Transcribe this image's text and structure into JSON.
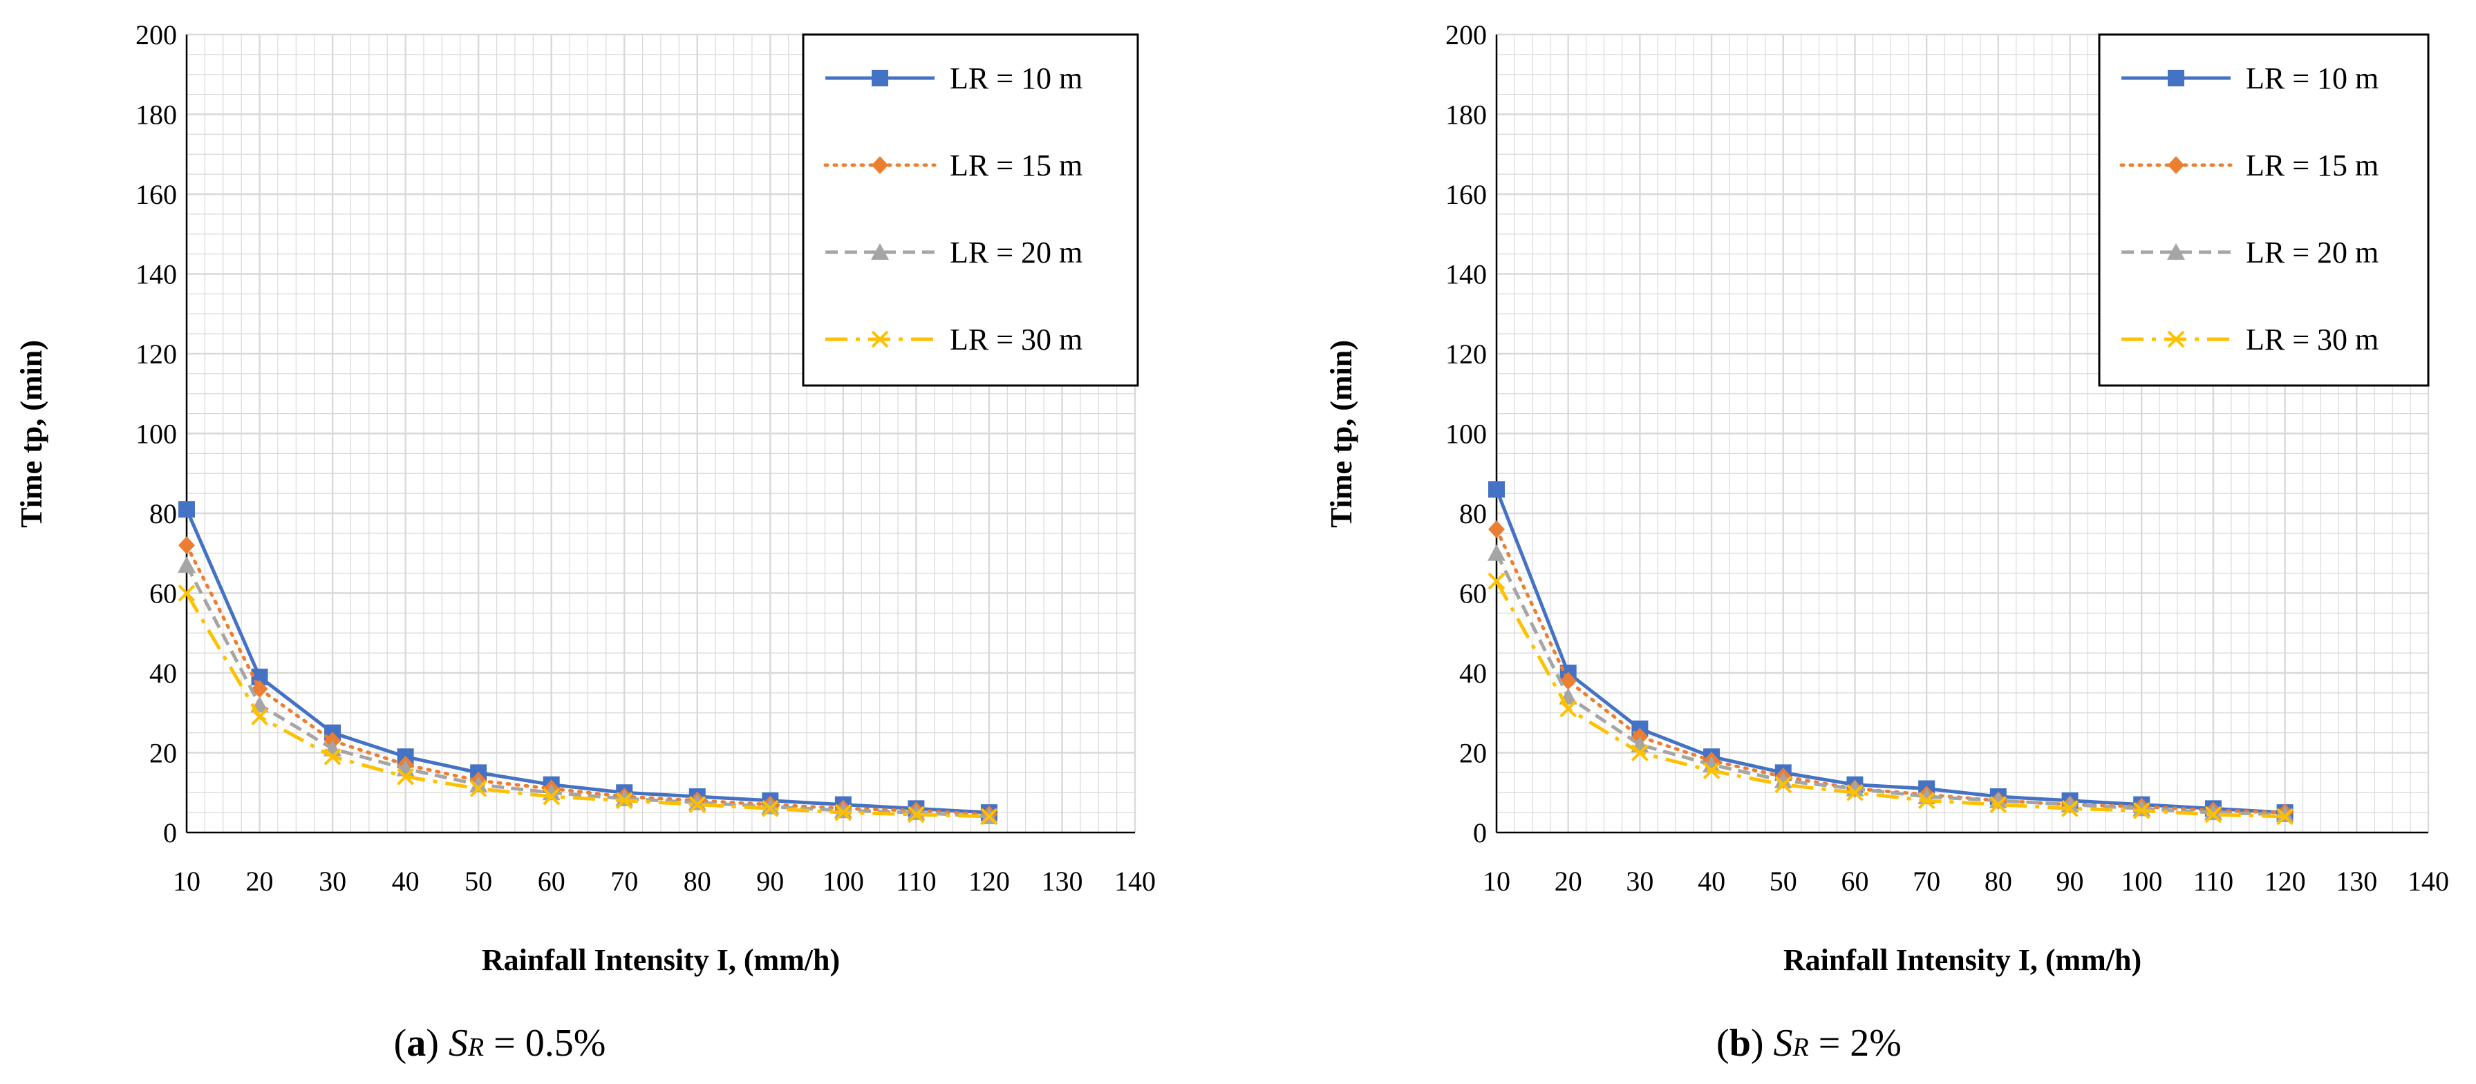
{
  "figure": {
    "panels": [
      {
        "caption": {
          "open": "(",
          "letter": "a",
          "close": ")",
          "var": "S",
          "sub": "R",
          "rest": " = 0.5%"
        }
      },
      {
        "caption": {
          "open": "(",
          "letter": "b",
          "close": ")",
          "var": "S",
          "sub": "R",
          "rest": " = 2%"
        }
      }
    ]
  },
  "colors": {
    "LR10": "#4472C4",
    "LR15": "#ED7D31",
    "LR20": "#A5A5A5",
    "LR30": "#FFC000",
    "grid": "#D9D9D9",
    "axis": "#000000"
  },
  "chart_data": [
    {
      "type": "line",
      "title": "",
      "xlabel": "Rainfall Intensity I, (mm/h)",
      "ylabel": "Time tp, (min)",
      "xlim": [
        10,
        140
      ],
      "ylim": [
        0,
        200
      ],
      "xticks": [
        10,
        20,
        30,
        40,
        50,
        60,
        70,
        80,
        90,
        100,
        110,
        120,
        130,
        140
      ],
      "yticks": [
        0,
        20,
        40,
        60,
        80,
        100,
        120,
        140,
        160,
        180,
        200
      ],
      "grid": true,
      "legend_position": "top-right",
      "x": [
        10,
        20,
        30,
        40,
        50,
        60,
        70,
        80,
        90,
        100,
        110,
        120
      ],
      "series": [
        {
          "name": "LR = 10 m",
          "key": "LR10",
          "marker": "square",
          "dash": "solid",
          "values": [
            81,
            39,
            25,
            19,
            15,
            12,
            10,
            9,
            8,
            7,
            6,
            5
          ]
        },
        {
          "name": "LR = 15 m",
          "key": "LR15",
          "marker": "diamond",
          "dash": "dotted",
          "values": [
            72,
            36,
            23,
            17,
            13,
            11,
            9,
            8,
            7,
            6,
            5.5,
            4.5
          ]
        },
        {
          "name": "LR = 20 m",
          "key": "LR20",
          "marker": "triangle",
          "dash": "dashed",
          "values": [
            67,
            32,
            21,
            16,
            12,
            10,
            8.5,
            7.5,
            6.5,
            5.5,
            5,
            4
          ]
        },
        {
          "name": "LR = 30 m",
          "key": "LR30",
          "marker": "x",
          "dash": "longdashdot",
          "values": [
            60,
            29,
            19,
            14,
            11,
            9,
            8,
            7,
            6,
            5,
            4.5,
            4
          ]
        }
      ]
    },
    {
      "type": "line",
      "title": "",
      "xlabel": "Rainfall Intensity I, (mm/h)",
      "ylabel": "Time tp, (min)",
      "xlim": [
        10,
        140
      ],
      "ylim": [
        0,
        200
      ],
      "xticks": [
        10,
        20,
        30,
        40,
        50,
        60,
        70,
        80,
        90,
        100,
        110,
        120,
        130,
        140
      ],
      "yticks": [
        0,
        20,
        40,
        60,
        80,
        100,
        120,
        140,
        160,
        180,
        200
      ],
      "grid": true,
      "legend_position": "top-right",
      "x": [
        10,
        20,
        30,
        40,
        50,
        60,
        70,
        80,
        90,
        100,
        110,
        120
      ],
      "series": [
        {
          "name": "LR = 10 m",
          "key": "LR10",
          "marker": "square",
          "dash": "solid",
          "values": [
            86,
            40,
            26,
            19,
            15,
            12,
            11,
            9,
            8,
            7,
            6,
            5
          ]
        },
        {
          "name": "LR = 15 m",
          "key": "LR15",
          "marker": "diamond",
          "dash": "dotted",
          "values": [
            76,
            38,
            24,
            18,
            14,
            11,
            9.5,
            8,
            7,
            6.5,
            5.5,
            5
          ]
        },
        {
          "name": "LR = 20 m",
          "key": "LR20",
          "marker": "triangle",
          "dash": "dashed",
          "values": [
            70,
            34,
            22,
            17,
            13,
            11,
            9,
            8,
            7,
            6,
            5,
            4.5
          ]
        },
        {
          "name": "LR = 30 m",
          "key": "LR30",
          "marker": "x",
          "dash": "longdashdot",
          "values": [
            63,
            31,
            20,
            15.5,
            12,
            10,
            8,
            7,
            6,
            5.5,
            4.5,
            4
          ]
        }
      ]
    }
  ]
}
